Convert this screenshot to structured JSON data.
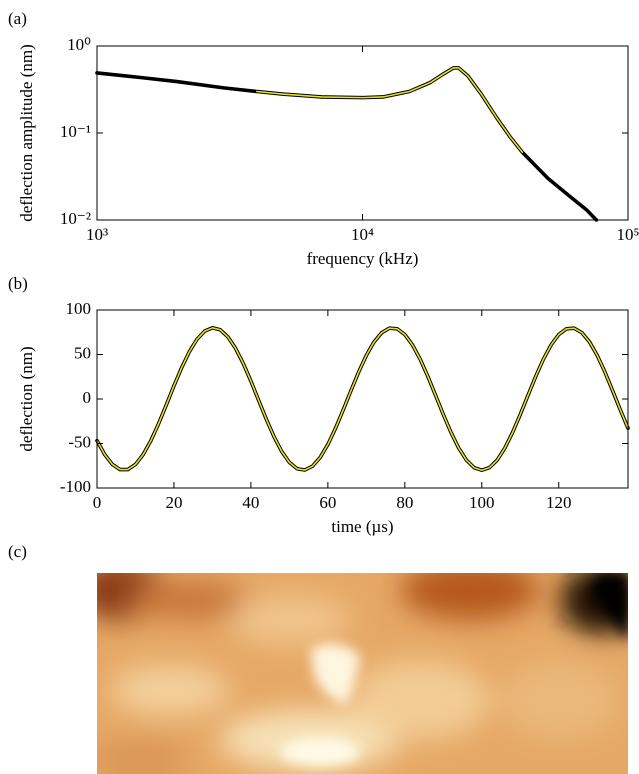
{
  "chart_data": [
    {
      "type": "line",
      "panel_label": "(a)",
      "xlabel": "frequency (kHz)",
      "ylabel": "deflection amplitude (nm)",
      "xscale": "log",
      "yscale": "log",
      "xlim": [
        1000,
        100000
      ],
      "ylim": [
        0.01,
        1
      ],
      "xticks": [
        {
          "value": 1000,
          "label": "10³"
        },
        {
          "value": 10000,
          "label": "10⁴"
        },
        {
          "value": 100000,
          "label": "10⁵"
        }
      ],
      "yticks": [
        {
          "value": 0.01,
          "label": "10⁻²"
        },
        {
          "value": 0.1,
          "label": "10⁻¹"
        },
        {
          "value": 1,
          "label": "10⁰"
        }
      ],
      "series": [
        {
          "color": "#000000",
          "x": [
            1000,
            1500,
            2000,
            3000,
            4000,
            5000,
            7000,
            10000,
            12000,
            15000,
            18000,
            20000,
            22000,
            23000,
            25000,
            28000,
            32000,
            36000,
            40000,
            50000,
            60000,
            70000,
            76000
          ],
          "values": [
            0.49,
            0.43,
            0.39,
            0.33,
            0.3,
            0.28,
            0.26,
            0.255,
            0.26,
            0.3,
            0.38,
            0.47,
            0.56,
            0.56,
            0.45,
            0.28,
            0.15,
            0.09,
            0.06,
            0.03,
            0.019,
            0.013,
            0.01
          ]
        },
        {
          "color": "#e8e020",
          "x": [
            4000,
            5000,
            7000,
            10000,
            12000,
            15000,
            18000,
            20000,
            22000,
            23000,
            25000,
            28000,
            32000,
            36000,
            40000
          ],
          "values": [
            0.3,
            0.28,
            0.26,
            0.255,
            0.26,
            0.3,
            0.38,
            0.47,
            0.56,
            0.56,
            0.45,
            0.28,
            0.15,
            0.09,
            0.06
          ]
        }
      ]
    },
    {
      "type": "line",
      "panel_label": "(b)",
      "xlabel": "time (µs)",
      "ylabel": "deflection (nm)",
      "xlim": [
        0,
        138
      ],
      "ylim": [
        -100,
        100
      ],
      "xticks": [
        0,
        20,
        40,
        60,
        80,
        100,
        120
      ],
      "yticks": [
        -100,
        -50,
        0,
        50,
        100
      ],
      "series": [
        {
          "color": "#000000",
          "x": [
            0,
            2,
            4,
            6,
            8,
            10,
            12,
            14,
            16,
            18,
            20,
            22,
            24,
            26,
            28,
            30,
            32,
            34,
            36,
            38,
            40,
            42,
            44,
            46,
            48,
            50,
            52,
            54,
            56,
            58,
            60,
            62,
            64,
            66,
            68,
            70,
            72,
            74,
            76,
            78,
            80,
            82,
            84,
            86,
            88,
            90,
            92,
            94,
            96,
            98,
            100,
            102,
            104,
            106,
            108,
            110,
            112,
            114,
            116,
            118,
            120,
            122,
            124,
            126,
            128,
            130,
            132,
            134,
            136,
            138
          ],
          "values": [
            -46.8,
            -62.4,
            -73.5,
            -79.3,
            -79.3,
            -73.5,
            -62.4,
            -46.8,
            -27.8,
            -6.8,
            14.8,
            35.2,
            53.1,
            67.2,
            76.3,
            80.0,
            77.8,
            69.9,
            57.0,
            40.0,
            20.1,
            -1.4,
            -22.7,
            -42.3,
            -58.9,
            -71.2,
            -78.4,
            -79.8,
            -75.5,
            -65.7,
            -51.1,
            -32.8,
            -12.1,
            9.4,
            30.3,
            49.0,
            64.1,
            74.5,
            79.6,
            78.9,
            72.4,
            60.7,
            44.6,
            25.2,
            4.0,
            -17.4,
            -37.6,
            -55.1,
            -68.6,
            -77.1,
            -80.0,
            -77.1,
            -68.6,
            -55.1,
            -37.6,
            -17.4,
            4.0,
            25.2,
            44.6,
            60.7,
            72.4,
            78.9,
            79.6,
            74.5,
            64.1,
            49.0,
            30.3,
            9.4,
            -12.1,
            -32.8
          ]
        },
        {
          "color": "#e8e020",
          "x": [
            0,
            2,
            4,
            6,
            8,
            10,
            12,
            14,
            16,
            18,
            20,
            22,
            24,
            26,
            28,
            30,
            32,
            34,
            36,
            38,
            40,
            42,
            44,
            46,
            48,
            50,
            52,
            54,
            56,
            58,
            60,
            62,
            64,
            66,
            68,
            70,
            72,
            74,
            76,
            78,
            80,
            82,
            84,
            86,
            88,
            90,
            92,
            94,
            96,
            98,
            100,
            102,
            104,
            106,
            108,
            110,
            112,
            114,
            116,
            118,
            120,
            122,
            124,
            126,
            128,
            130,
            132,
            134,
            136,
            138
          ],
          "values": [
            -46.8,
            -62.4,
            -73.5,
            -79.3,
            -79.3,
            -73.5,
            -62.4,
            -46.8,
            -27.8,
            -6.8,
            14.8,
            35.2,
            53.1,
            67.2,
            76.3,
            80.0,
            77.8,
            69.9,
            57.0,
            40.0,
            20.1,
            -1.4,
            -22.7,
            -42.3,
            -58.9,
            -71.2,
            -78.4,
            -79.8,
            -75.5,
            -65.7,
            -51.1,
            -32.8,
            -12.1,
            9.4,
            30.3,
            49.0,
            64.1,
            74.5,
            79.6,
            78.9,
            72.4,
            60.7,
            44.6,
            25.2,
            4.0,
            -17.4,
            -37.6,
            -55.1,
            -68.6,
            -77.1,
            -80.0,
            -77.1,
            -68.6,
            -55.1,
            -37.6,
            -17.4,
            4.0,
            25.2,
            44.6,
            60.7,
            72.4,
            78.9,
            79.6,
            74.5,
            64.1,
            49.0,
            30.3,
            9.4,
            -12.1,
            -32.8
          ]
        }
      ]
    }
  ],
  "panel_c": {
    "panel_label": "(c)"
  }
}
